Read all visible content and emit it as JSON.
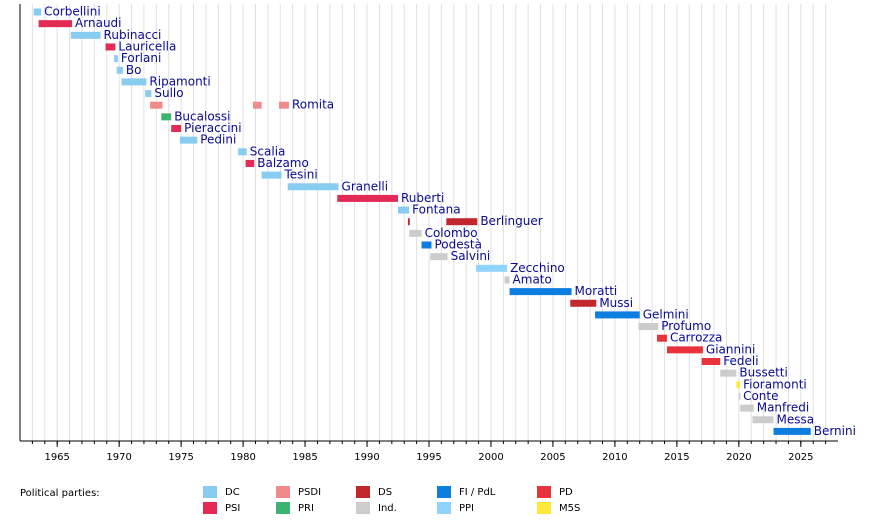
{
  "chart_data": {
    "type": "timeline",
    "xlim": [
      1962,
      2028
    ],
    "xticks": [
      1965,
      1970,
      1975,
      1980,
      1985,
      1990,
      1995,
      2000,
      2005,
      2010,
      2015,
      2020,
      2025
    ],
    "minor_xticks": [
      1963,
      1964,
      1965,
      1966,
      1967,
      1968,
      1969,
      1970,
      1971,
      1972,
      1973,
      1974,
      1975,
      1976,
      1977,
      1978,
      1979,
      1980,
      1981,
      1982,
      1983,
      1984,
      1985,
      1986,
      1987,
      1988,
      1989,
      1990,
      1991,
      1992,
      1993,
      1994,
      1995,
      1996,
      1997,
      1998,
      1999,
      2000,
      2001,
      2002,
      2003,
      2004,
      2005,
      2006,
      2007,
      2008,
      2009,
      2010,
      2011,
      2012,
      2013,
      2014,
      2015,
      2016,
      2017,
      2018,
      2019,
      2020,
      2021,
      2022,
      2023,
      2024,
      2025,
      2026,
      2027
    ],
    "grid": true,
    "legend_title": "Political parties:",
    "parties": [
      {
        "name": "DC",
        "color": "#88ccf1"
      },
      {
        "name": "PSI",
        "color": "#e32a55"
      },
      {
        "name": "PSDI",
        "color": "#f08b8b"
      },
      {
        "name": "PRI",
        "color": "#3cb371"
      },
      {
        "name": "DS",
        "color": "#c1272d"
      },
      {
        "name": "Ind.",
        "color": "#cccccc"
      },
      {
        "name": "FI / PdL",
        "color": "#0d7ee0"
      },
      {
        "name": "PPI",
        "color": "#8fd3fe"
      },
      {
        "name": "PD",
        "color": "#e8333c"
      },
      {
        "name": "M5S",
        "color": "#ffe93b"
      }
    ],
    "rows": [
      {
        "label": "Corbellini",
        "color": "#88ccf1",
        "segments": [
          [
            1963.1,
            1963.7
          ]
        ]
      },
      {
        "label": "Arnaudi",
        "color": "#e32a55",
        "segments": [
          [
            1963.5,
            1966.2
          ]
        ]
      },
      {
        "label": "Rubinacci",
        "color": "#88ccf1",
        "segments": [
          [
            1966.1,
            1968.5
          ]
        ]
      },
      {
        "label": "Lauricella",
        "color": "#e32a55",
        "segments": [
          [
            1968.9,
            1969.7
          ]
        ]
      },
      {
        "label": "Forlani",
        "color": "#88ccf1",
        "segments": [
          [
            1969.6,
            1969.9
          ]
        ]
      },
      {
        "label": "Bo",
        "color": "#88ccf1",
        "segments": [
          [
            1969.8,
            1970.3
          ]
        ]
      },
      {
        "label": "Ripamonti",
        "color": "#88ccf1",
        "segments": [
          [
            1970.2,
            1972.2
          ]
        ]
      },
      {
        "label": "Sullo",
        "color": "#88ccf1",
        "segments": [
          [
            1972.1,
            1972.6
          ]
        ]
      },
      {
        "label": "Romita",
        "color": "#f08b8b",
        "segments": [
          [
            1972.5,
            1973.5
          ],
          [
            1980.8,
            1981.5
          ],
          [
            1982.9,
            1983.7
          ]
        ]
      },
      {
        "label": "Bucalossi",
        "color": "#3cb371",
        "segments": [
          [
            1973.4,
            1974.2
          ]
        ]
      },
      {
        "label": "Pieraccini",
        "color": "#e32a55",
        "segments": [
          [
            1974.2,
            1975.0
          ]
        ]
      },
      {
        "label": "Pedini",
        "color": "#88ccf1",
        "segments": [
          [
            1974.9,
            1976.3
          ]
        ]
      },
      {
        "label": "Scalia",
        "color": "#88ccf1",
        "segments": [
          [
            1979.6,
            1980.3
          ]
        ]
      },
      {
        "label": "Balzamo",
        "color": "#e32a55",
        "segments": [
          [
            1980.2,
            1980.9
          ]
        ]
      },
      {
        "label": "Tesini",
        "color": "#88ccf1",
        "segments": [
          [
            1981.5,
            1983.1
          ]
        ]
      },
      {
        "label": "Granelli",
        "color": "#88ccf1",
        "segments": [
          [
            1983.6,
            1987.7
          ]
        ]
      },
      {
        "label": "Ruberti",
        "color": "#e32a55",
        "segments": [
          [
            1987.6,
            1992.5
          ]
        ]
      },
      {
        "label": "Fontana",
        "color": "#88ccf1",
        "segments": [
          [
            1992.5,
            1993.4
          ]
        ]
      },
      {
        "label": "Berlinguer",
        "color": "#c1272d",
        "segments": [
          [
            1993.3,
            1993.45
          ],
          [
            1996.4,
            1998.9
          ]
        ]
      },
      {
        "label": "Colombo",
        "color": "#cccccc",
        "segments": [
          [
            1993.4,
            1994.4
          ]
        ]
      },
      {
        "label": "Podestà",
        "color": "#0d7ee0",
        "segments": [
          [
            1994.4,
            1995.2
          ]
        ]
      },
      {
        "label": "Salvini",
        "color": "#cccccc",
        "segments": [
          [
            1995.1,
            1996.5
          ]
        ]
      },
      {
        "label": "Zecchino",
        "color": "#8fd3fe",
        "segments": [
          [
            1998.8,
            2001.3
          ]
        ]
      },
      {
        "label": "Amato",
        "color": "#cccccc",
        "segments": [
          [
            2001.1,
            2001.5
          ]
        ]
      },
      {
        "label": "Moratti",
        "color": "#0d7ee0",
        "segments": [
          [
            2001.5,
            2006.5
          ]
        ]
      },
      {
        "label": "Mussi",
        "color": "#c1272d",
        "segments": [
          [
            2006.4,
            2008.5
          ]
        ]
      },
      {
        "label": "Gelmini",
        "color": "#0d7ee0",
        "segments": [
          [
            2008.4,
            2012.0
          ]
        ]
      },
      {
        "label": "Profumo",
        "color": "#cccccc",
        "segments": [
          [
            2011.9,
            2013.5
          ]
        ]
      },
      {
        "label": "Carrozza",
        "color": "#e8333c",
        "segments": [
          [
            2013.4,
            2014.2
          ]
        ]
      },
      {
        "label": "Giannini",
        "color": "#e8333c",
        "segments": [
          [
            2014.2,
            2017.1
          ]
        ]
      },
      {
        "label": "Fedeli",
        "color": "#e8333c",
        "segments": [
          [
            2017.0,
            2018.5
          ]
        ]
      },
      {
        "label": "Bussetti",
        "color": "#cccccc",
        "segments": [
          [
            2018.5,
            2019.8
          ]
        ]
      },
      {
        "label": "Fioramonti",
        "color": "#ffe93b",
        "segments": [
          [
            2019.8,
            2020.1
          ]
        ]
      },
      {
        "label": "Conte",
        "color": "#cccccc",
        "segments": [
          [
            2020.0,
            2020.1
          ]
        ]
      },
      {
        "label": "Manfredi",
        "color": "#cccccc",
        "segments": [
          [
            2020.1,
            2021.2
          ]
        ]
      },
      {
        "label": "Messa",
        "color": "#cccccc",
        "segments": [
          [
            2021.1,
            2022.8
          ]
        ]
      },
      {
        "label": "Bernini",
        "color": "#0d7ee0",
        "segments": [
          [
            2022.8,
            2025.8
          ]
        ]
      }
    ]
  }
}
